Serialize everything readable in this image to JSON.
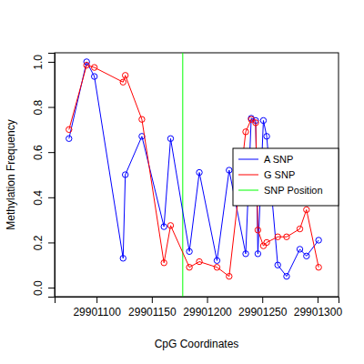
{
  "chart_data": {
    "type": "line",
    "x_label": "CpG Coordinates",
    "y_label": "Methylation Frequency",
    "x": [
      29901075,
      29901091,
      29901098,
      29901124,
      29901126,
      29901141,
      29901161,
      29901167,
      29901184,
      29901193,
      29901209,
      29901220,
      29901235,
      29901240,
      29901244,
      29901246,
      29901251,
      29901254,
      29901264,
      29901272,
      29901284,
      29901290,
      29901301
    ],
    "series": [
      {
        "name": "A SNP",
        "color": "#0000ff",
        "marker": "circle",
        "line_style": "solid",
        "values": [
          0.66,
          1.0,
          0.935,
          0.13,
          0.5,
          0.67,
          0.27,
          0.66,
          0.16,
          0.51,
          0.12,
          0.52,
          0.15,
          0.75,
          0.74,
          0.15,
          0.74,
          0.67,
          0.1,
          0.05,
          0.17,
          0.14,
          0.21
        ]
      },
      {
        "name": "G SNP",
        "color": "#ff0000",
        "marker": "circle",
        "line_style": "solid",
        "values": [
          0.7,
          0.985,
          0.975,
          0.91,
          0.94,
          0.745,
          0.11,
          0.275,
          0.09,
          0.115,
          0.09,
          0.05,
          0.69,
          0.745,
          0.73,
          0.255,
          0.185,
          0.2,
          0.225,
          0.225,
          0.26,
          0.345,
          0.09
        ]
      }
    ],
    "vlines": [
      {
        "name": "SNP Position",
        "color": "#00ff00",
        "x": 29901178
      }
    ],
    "xlim": [
      29901062,
      29901319
    ],
    "ylim": [
      -0.04,
      1.04
    ],
    "xticks": [
      29901100,
      29901150,
      29901200,
      29901250,
      29901300
    ],
    "yticks": [
      {
        "value": 0,
        "label": "0.0"
      },
      {
        "value": 0.2,
        "label": "0.2"
      },
      {
        "value": 0.4,
        "label": "0.4"
      },
      {
        "value": 0.6,
        "label": "0.6"
      },
      {
        "value": 0.8,
        "label": "0.8"
      },
      {
        "value": 1.0,
        "label": "1.0"
      }
    ],
    "legend": "right",
    "grid": false
  }
}
